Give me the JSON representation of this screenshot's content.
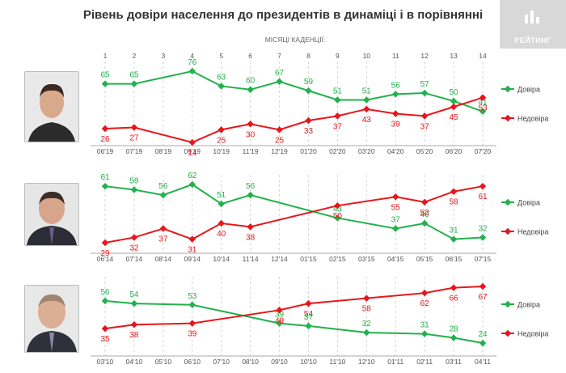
{
  "title": "Рівень довіри населення до президентів в динаміці і в порівнянні",
  "subtitle": "МІСЯЦІ КАДЕНЦІЇ:",
  "logo_text": "РЕЙТИНГ",
  "months": [
    "1",
    "2",
    "3",
    "4",
    "5",
    "6",
    "7",
    "8",
    "9",
    "10",
    "11",
    "12",
    "13",
    "14"
  ],
  "colors": {
    "trust": "#22b14c",
    "distrust": "#e8161b",
    "axis": "#aaaaaa",
    "grid": "#d6d6d6"
  },
  "chart_data": [
    {
      "type": "line",
      "x": [
        "06'19",
        "07'19",
        "08'19",
        "09'19",
        "10'19",
        "11'19",
        "12'19",
        "01'20",
        "02'20",
        "03'20",
        "04'20",
        "05'20",
        "06'20",
        "07'20"
      ],
      "series": [
        {
          "name": "Довіра",
          "values": [
            65,
            65,
            null,
            76,
            63,
            60,
            67,
            59,
            51,
            51,
            56,
            57,
            50,
            41
          ]
        },
        {
          "name": "Недовіра",
          "values": [
            26,
            27,
            null,
            14,
            25,
            30,
            25,
            33,
            37,
            43,
            39,
            37,
            45,
            53
          ]
        }
      ],
      "legend": "right"
    },
    {
      "type": "line",
      "x": [
        "06'14",
        "07'14",
        "08'14",
        "09'14",
        "10'14",
        "11'14",
        "12'14",
        "01'15",
        "02'15",
        "03'15",
        "04'15",
        "05'15",
        "06'15",
        "07'15"
      ],
      "series": [
        {
          "name": "Довіра",
          "values": [
            61,
            59,
            56,
            62,
            51,
            56,
            null,
            null,
            43,
            null,
            37,
            40,
            31,
            32
          ]
        },
        {
          "name": "Недовіра",
          "values": [
            29,
            32,
            37,
            31,
            40,
            38,
            null,
            null,
            50,
            null,
            55,
            52,
            58,
            61
          ]
        }
      ],
      "legend": "right"
    },
    {
      "type": "line",
      "x": [
        "03'10",
        "04'10",
        "05'10",
        "06'10",
        "07'10",
        "08'10",
        "09'10",
        "10'10",
        "11'10",
        "12'10",
        "01'11",
        "02'11",
        "03'11",
        "04'11"
      ],
      "series": [
        {
          "name": "Довіра",
          "values": [
            56,
            54,
            null,
            53,
            null,
            null,
            39,
            37,
            null,
            32,
            null,
            31,
            28,
            24
          ]
        },
        {
          "name": "Недовіра",
          "values": [
            35,
            38,
            null,
            39,
            null,
            null,
            49,
            54,
            null,
            58,
            null,
            62,
            66,
            67
          ]
        }
      ],
      "legend": "right"
    }
  ]
}
